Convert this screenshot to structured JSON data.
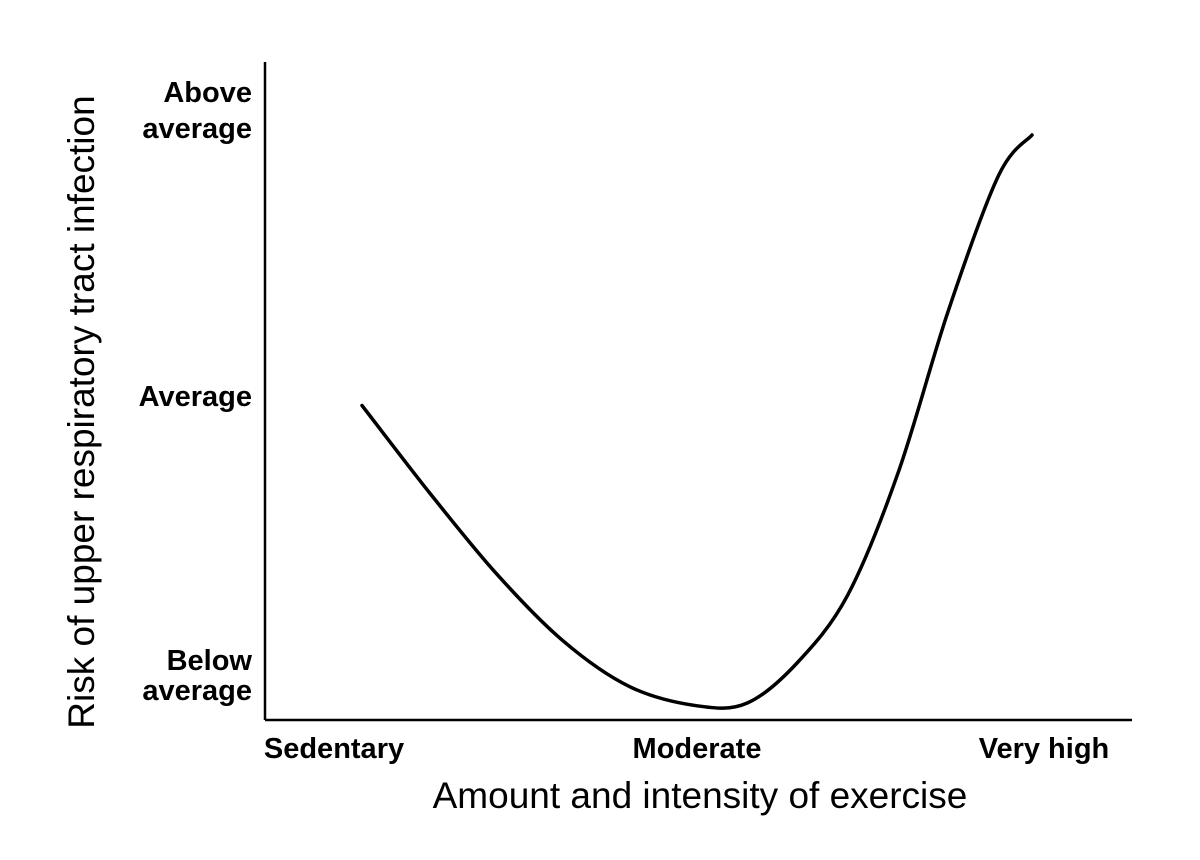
{
  "chart_data": {
    "type": "line",
    "title": "",
    "xlabel": "Amount and intensity of exercise",
    "ylabel": "Risk of upper respiratory tract infection",
    "x_tick_labels": [
      "Sedentary",
      "Moderate",
      "Very high"
    ],
    "y_tick_labels": [
      {
        "lines": [
          "Above",
          "average"
        ],
        "level": 2
      },
      {
        "lines": [
          "Average"
        ],
        "level": 1
      },
      {
        "lines": [
          "Below",
          "average"
        ],
        "level": 0
      }
    ],
    "xlim": [
      0,
      2
    ],
    "ylim": [
      0,
      2
    ],
    "grid": false,
    "legend": "none",
    "series": [
      {
        "x": [
          0.0,
          0.2,
          0.4,
          0.6,
          0.8,
          1.0,
          1.15,
          1.3,
          1.45,
          1.6,
          1.75,
          1.9,
          2.0
        ],
        "y": [
          1.0,
          0.68,
          0.38,
          0.13,
          -0.04,
          -0.11,
          -0.1,
          0.05,
          0.3,
          0.75,
          1.35,
          1.85,
          2.0
        ],
        "color": "#000000"
      }
    ]
  }
}
